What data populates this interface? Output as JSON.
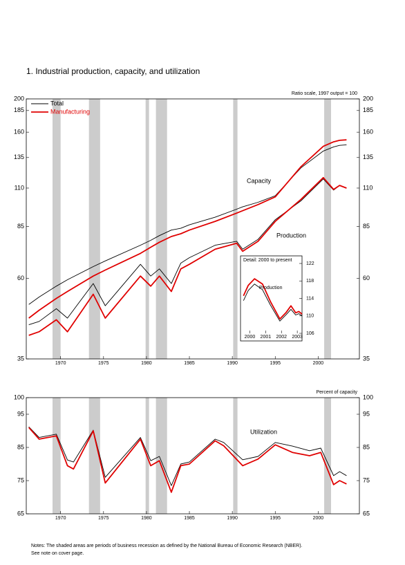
{
  "chart_data": [
    {
      "type": "line",
      "log_scale": true,
      "title": "1.  Industrial production, capacity, and utilization",
      "subtitle": "Ratio scale, 1997 output = 100",
      "annotations": [
        "Capacity",
        "Production"
      ],
      "x": [
        1966.3,
        1967.5,
        1969.5,
        1970.8,
        1973.8,
        1975.2,
        1979.3,
        1980.5,
        1981.5,
        1982.9,
        1984,
        1985,
        1988,
        1990.5,
        1991.2,
        1993,
        1995,
        1998,
        2000.6,
        2001.8,
        2002.5,
        2003.3
      ],
      "series": [
        {
          "name": "Total",
          "color": "#000000",
          "capacity": [
            50.4,
            53,
            57,
            59.5,
            65,
            67.5,
            75,
            77.5,
            80,
            83,
            84,
            86,
            90.5,
            95.5,
            97,
            100,
            104.5,
            126,
            141,
            145,
            146.5,
            147
          ],
          "production": [
            44,
            45,
            49,
            46,
            58,
            50,
            66,
            61,
            64,
            58,
            66.5,
            69,
            75,
            77,
            73,
            78,
            89,
            101,
            117,
            108.5,
            112,
            110
          ]
        },
        {
          "name": "Manufacturing",
          "color": "#e00000",
          "capacity": [
            46,
            48.5,
            52.5,
            55,
            61,
            63.5,
            71,
            74,
            76.5,
            79.5,
            81,
            83,
            88,
            93,
            94.5,
            98.5,
            103.7,
            127,
            145.5,
            150,
            151.5,
            152
          ],
          "production": [
            41,
            42,
            45.5,
            42,
            54,
            46,
            61,
            57,
            61,
            55,
            64,
            66,
            73,
            76,
            72,
            77,
            88,
            102,
            118,
            109,
            112,
            110
          ]
        }
      ],
      "recessions": [
        [
          1969.06,
          1970.0
        ],
        [
          1973.3,
          1974.6
        ],
        [
          1979.9,
          1980.3
        ],
        [
          1981.1,
          1982.4
        ],
        [
          1990.1,
          1990.6
        ],
        [
          2000.7,
          2001.5
        ]
      ],
      "xlim": [
        1966,
        2004.8
      ],
      "xticks": [
        1970,
        1975,
        1980,
        1985,
        1990,
        1995,
        2000
      ],
      "ylim": [
        35,
        200
      ],
      "yticks": [
        35,
        60,
        85,
        110,
        135,
        160,
        185,
        200
      ],
      "ytick_side": "both"
    },
    {
      "type": "line",
      "log_scale": false,
      "title": "Detail: 2000 to present",
      "annotations": [
        "Production"
      ],
      "x": [
        1999.6,
        1999.9,
        2000.3,
        2000.8,
        2001.3,
        2001.9,
        2002.3,
        2002.6,
        2002.9,
        2003.1,
        2003.3
      ],
      "series": [
        {
          "name": "Total",
          "color": "#000000",
          "values": [
            113.5,
            115.8,
            117.3,
            116,
            112.5,
            108.8,
            110.3,
            111.5,
            110.2,
            110.5,
            110.0
          ]
        },
        {
          "name": "Manufacturing",
          "color": "#e00000",
          "values": [
            114.6,
            117,
            118.5,
            117.3,
            113.3,
            109.3,
            110.8,
            112.3,
            110.7,
            111,
            110.4
          ]
        }
      ],
      "xlim": [
        1999.5,
        2003.3
      ],
      "xticks": [
        2000,
        2001,
        2002,
        2003
      ],
      "ylim": [
        106,
        122
      ],
      "yticks": [
        106,
        110,
        114,
        118,
        122
      ],
      "ytick_side": "right"
    },
    {
      "type": "line",
      "log_scale": false,
      "subtitle": "Percent of capacity",
      "annotations": [
        "Utilization"
      ],
      "x": [
        1966.3,
        1967.5,
        1969.5,
        1970.8,
        1971.5,
        1973.8,
        1975.2,
        1979.3,
        1980.5,
        1981.5,
        1982.9,
        1984,
        1985,
        1988,
        1989,
        1991.2,
        1993,
        1995,
        1997,
        1999,
        2000.3,
        2001.8,
        2002.5,
        2003.3
      ],
      "series": [
        {
          "name": "Total",
          "color": "#000000",
          "values": [
            91.2,
            88,
            89,
            81.2,
            80.6,
            90.2,
            76,
            88,
            81,
            82.3,
            73.5,
            80,
            80.6,
            87.5,
            86.5,
            81.3,
            82.3,
            86.5,
            85.4,
            84,
            84.8,
            76.5,
            77.7,
            76.5
          ]
        },
        {
          "name": "Manufacturing",
          "color": "#e00000",
          "values": [
            91,
            87.5,
            88.5,
            79.5,
            78.5,
            90,
            74.3,
            87.5,
            79.5,
            81,
            71.5,
            79.5,
            80,
            87,
            85.5,
            79.5,
            81.5,
            85.8,
            83.5,
            82.5,
            83.5,
            73.8,
            75,
            74
          ]
        }
      ],
      "recessions": [
        [
          1969.06,
          1970.0
        ],
        [
          1973.3,
          1974.6
        ],
        [
          1979.9,
          1980.3
        ],
        [
          1981.1,
          1982.4
        ],
        [
          1990.1,
          1990.6
        ],
        [
          2000.7,
          2001.5
        ]
      ],
      "xlim": [
        1966,
        2004.8
      ],
      "xticks": [
        1970,
        1975,
        1980,
        1985,
        1990,
        1995,
        2000
      ],
      "ylim": [
        65,
        100
      ],
      "yticks": [
        65,
        75,
        85,
        95,
        100
      ],
      "ytick_side": "both"
    }
  ],
  "notes": [
    "Notes: The shaded areas are periods of business recession as defined by the National Bureau of Economic Research (NBER).",
    "See note on cover page."
  ]
}
